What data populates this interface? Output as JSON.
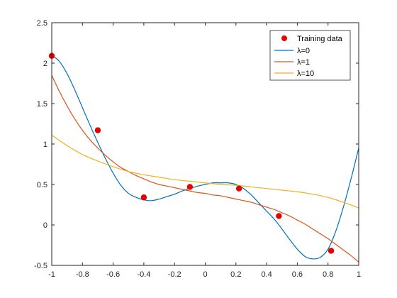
{
  "chart_data": {
    "type": "line",
    "title": "",
    "xlabel": "",
    "ylabel": "",
    "xlim": [
      -1,
      1
    ],
    "ylim": [
      -0.5,
      2.5
    ],
    "xticks": [
      -1,
      -0.8,
      -0.6,
      -0.4,
      -0.2,
      0,
      0.2,
      0.4,
      0.6,
      0.8,
      1
    ],
    "xtick_labels": [
      "-1",
      "-0.8",
      "-0.6",
      "-0.4",
      "-0.2",
      "0",
      "0.2",
      "0.4",
      "0.6",
      "0.8",
      "1"
    ],
    "yticks": [
      -0.5,
      0,
      0.5,
      1,
      1.5,
      2,
      2.5
    ],
    "ytick_labels": [
      "-0.5",
      "0",
      "0.5",
      "1",
      "1.5",
      "2",
      "2.5"
    ],
    "grid": false,
    "legend_position": "top-right",
    "points": {
      "name": "Training data",
      "color": "#e60000",
      "x": [
        -1.0,
        -0.7,
        -0.4,
        -0.1,
        0.22,
        0.48,
        0.82
      ],
      "y": [
        2.09,
        1.17,
        0.34,
        0.47,
        0.45,
        0.11,
        -0.32
      ]
    },
    "series": [
      {
        "name": "λ=0",
        "color": "#0072bd",
        "x": [
          -1,
          -0.95,
          -0.9,
          -0.85,
          -0.8,
          -0.75,
          -0.7,
          -0.65,
          -0.6,
          -0.55,
          -0.5,
          -0.45,
          -0.4,
          -0.35,
          -0.3,
          -0.25,
          -0.2,
          -0.15,
          -0.1,
          -0.05,
          0,
          0.05,
          0.1,
          0.15,
          0.2,
          0.25,
          0.3,
          0.35,
          0.4,
          0.45,
          0.5,
          0.55,
          0.6,
          0.65,
          0.7,
          0.75,
          0.8,
          0.85,
          0.9,
          0.95,
          1
        ],
        "y": [
          2.1,
          2.02,
          1.87,
          1.67,
          1.45,
          1.23,
          1.02,
          0.82,
          0.64,
          0.49,
          0.39,
          0.34,
          0.31,
          0.3,
          0.32,
          0.35,
          0.38,
          0.42,
          0.45,
          0.48,
          0.5,
          0.52,
          0.52,
          0.52,
          0.5,
          0.45,
          0.37,
          0.27,
          0.17,
          0.07,
          -0.05,
          -0.18,
          -0.3,
          -0.39,
          -0.42,
          -0.4,
          -0.3,
          -0.08,
          0.22,
          0.57,
          0.95
        ]
      },
      {
        "name": "λ=1",
        "color": "#d95319",
        "x": [
          -1,
          -0.95,
          -0.9,
          -0.85,
          -0.8,
          -0.75,
          -0.7,
          -0.65,
          -0.6,
          -0.55,
          -0.5,
          -0.45,
          -0.4,
          -0.35,
          -0.3,
          -0.25,
          -0.2,
          -0.15,
          -0.1,
          -0.05,
          0,
          0.05,
          0.1,
          0.15,
          0.2,
          0.25,
          0.3,
          0.35,
          0.4,
          0.45,
          0.5,
          0.55,
          0.6,
          0.65,
          0.7,
          0.75,
          0.8,
          0.85,
          0.9,
          0.95,
          1
        ],
        "y": [
          1.85,
          1.65,
          1.47,
          1.31,
          1.17,
          1.05,
          0.95,
          0.86,
          0.78,
          0.71,
          0.66,
          0.61,
          0.57,
          0.53,
          0.5,
          0.48,
          0.46,
          0.44,
          0.42,
          0.4,
          0.39,
          0.37,
          0.36,
          0.34,
          0.32,
          0.3,
          0.28,
          0.25,
          0.22,
          0.19,
          0.15,
          0.11,
          0.06,
          0.01,
          -0.05,
          -0.11,
          -0.17,
          -0.24,
          -0.31,
          -0.38,
          -0.46
        ]
      },
      {
        "name": "λ=10",
        "color": "#edb120",
        "x": [
          -1,
          -0.9,
          -0.8,
          -0.7,
          -0.6,
          -0.5,
          -0.4,
          -0.3,
          -0.2,
          -0.1,
          0,
          0.1,
          0.2,
          0.3,
          0.4,
          0.5,
          0.6,
          0.7,
          0.8,
          0.9,
          1
        ],
        "y": [
          1.11,
          0.98,
          0.87,
          0.79,
          0.72,
          0.66,
          0.62,
          0.59,
          0.56,
          0.54,
          0.52,
          0.5,
          0.49,
          0.47,
          0.45,
          0.43,
          0.41,
          0.38,
          0.34,
          0.28,
          0.21
        ]
      }
    ]
  }
}
